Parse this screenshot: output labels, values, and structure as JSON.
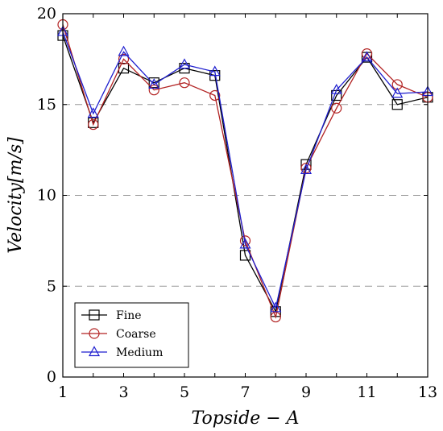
{
  "chart_data": {
    "type": "line",
    "xlabel": "Topside − A",
    "ylabel": "Velocity[m/s]",
    "xlim": [
      1,
      13
    ],
    "ylim": [
      0,
      20
    ],
    "xticks": [
      1,
      3,
      5,
      7,
      9,
      11,
      13
    ],
    "yticks": [
      0,
      5,
      10,
      15,
      20
    ],
    "grid": "horizontal dashed",
    "legend_position": "bottom-left",
    "x": [
      1,
      2,
      3,
      4,
      5,
      6,
      7,
      8,
      9,
      10,
      11,
      12,
      13
    ],
    "series": [
      {
        "name": "Fine",
        "color": "#000000",
        "marker": "square",
        "values": [
          18.8,
          14.0,
          17.0,
          16.2,
          17.0,
          16.6,
          6.7,
          3.6,
          11.7,
          15.5,
          17.6,
          15.0,
          15.4
        ]
      },
      {
        "name": "Coarse",
        "color": "#b22222",
        "marker": "circle",
        "values": [
          19.4,
          13.9,
          17.5,
          15.8,
          16.2,
          15.5,
          7.5,
          3.3,
          11.5,
          14.8,
          17.8,
          16.1,
          15.4
        ]
      },
      {
        "name": "Medium",
        "color": "#1f1fcf",
        "marker": "triangle",
        "values": [
          19.0,
          14.5,
          17.9,
          16.1,
          17.2,
          16.8,
          7.3,
          3.8,
          11.4,
          15.8,
          17.6,
          15.6,
          15.7
        ]
      }
    ]
  }
}
